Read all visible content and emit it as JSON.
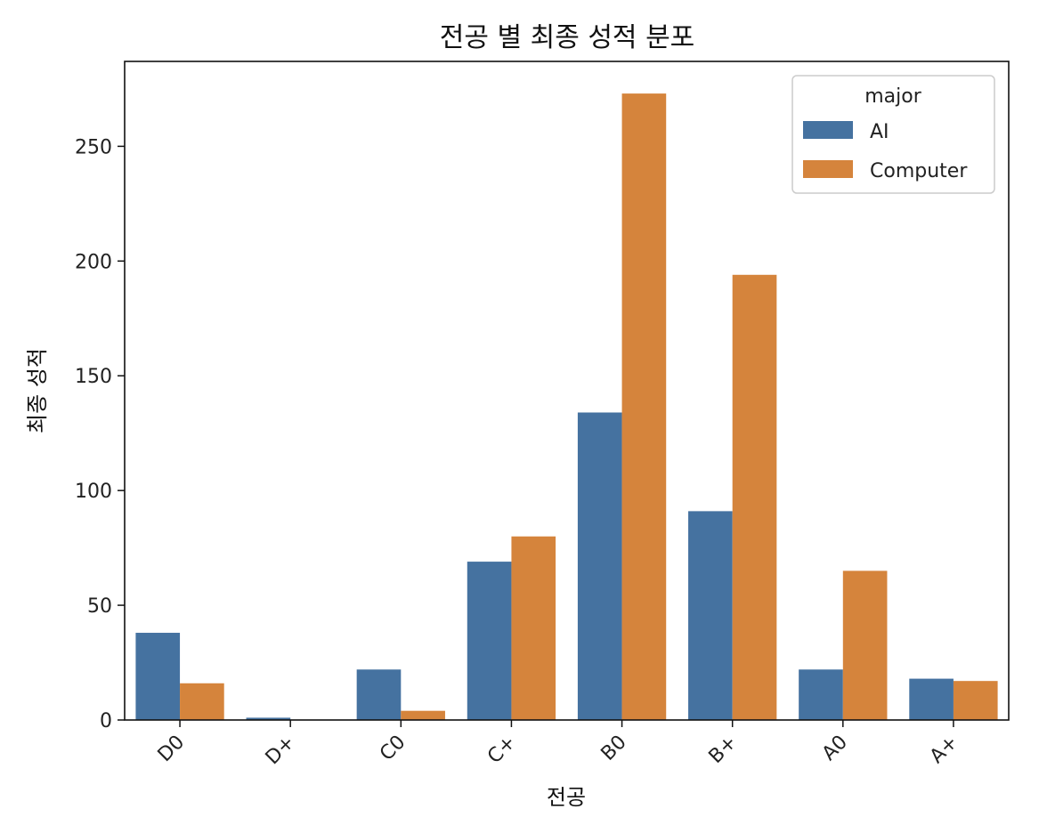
{
  "chart_data": {
    "type": "bar",
    "title": "전공 별 최종 성적 분포",
    "xlabel": "전공",
    "ylabel": "최종 성적",
    "categories": [
      "D0",
      "D+",
      "C0",
      "C+",
      "B0",
      "B+",
      "A0",
      "A+"
    ],
    "series": [
      {
        "name": "AI",
        "color": "#4572a0",
        "values": [
          38,
          1,
          22,
          69,
          134,
          91,
          22,
          18
        ]
      },
      {
        "name": "Computer",
        "color": "#d5843c",
        "values": [
          16,
          0,
          4,
          80,
          273,
          194,
          65,
          17
        ]
      }
    ],
    "ylim": [
      0,
      287
    ],
    "yticks": [
      0,
      50,
      100,
      150,
      200,
      250
    ],
    "legend": {
      "title": "major",
      "placement": "top-right"
    },
    "grid": false
  }
}
